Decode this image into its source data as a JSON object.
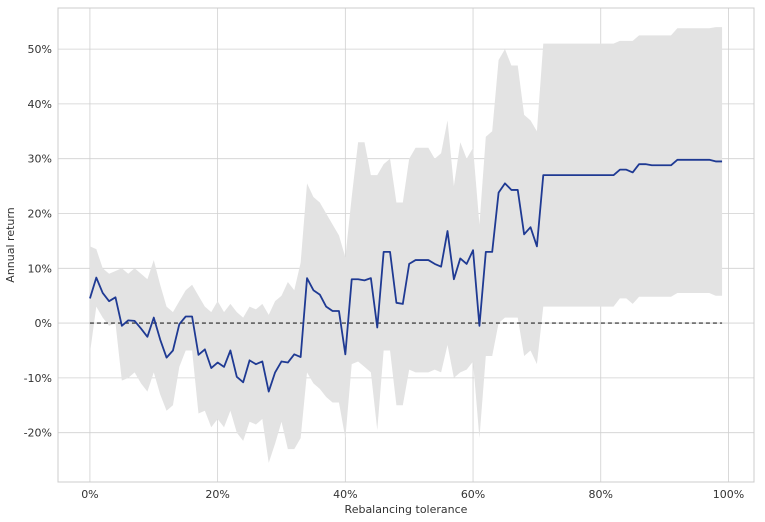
{
  "chart_data": {
    "type": "line",
    "title": "",
    "xlabel": "Rebalancing tolerance",
    "ylabel": "Annual return",
    "xlim": [
      -0.05,
      1.04
    ],
    "ylim": [
      -0.29,
      0.575
    ],
    "x_ticks": [
      0,
      0.2,
      0.4,
      0.6,
      0.8,
      1.0
    ],
    "x_tick_labels": [
      "0%",
      "20%",
      "40%",
      "60%",
      "80%",
      "100%"
    ],
    "y_ticks": [
      -0.2,
      -0.1,
      0,
      0.1,
      0.2,
      0.3,
      0.4,
      0.5
    ],
    "y_tick_labels": [
      "-20%",
      "-10%",
      "0%",
      "10%",
      "20%",
      "30%",
      "40%",
      "50%"
    ],
    "grid": true,
    "legend": "none",
    "colors": {
      "line": "#1f3a93",
      "band": "#e3e3e3",
      "zero": "#222222",
      "grid": "#d0d0d0",
      "frame": "#cccccc"
    },
    "x": [
      0,
      0.01,
      0.02,
      0.03,
      0.04,
      0.05,
      0.06,
      0.07,
      0.08,
      0.09,
      0.1,
      0.11,
      0.12,
      0.13,
      0.14,
      0.15,
      0.16,
      0.17,
      0.18,
      0.19,
      0.2,
      0.21,
      0.22,
      0.23,
      0.24,
      0.25,
      0.26,
      0.27,
      0.28,
      0.29,
      0.3,
      0.31,
      0.32,
      0.33,
      0.34,
      0.35,
      0.36,
      0.37,
      0.38,
      0.39,
      0.4,
      0.41,
      0.42,
      0.43,
      0.44,
      0.45,
      0.46,
      0.47,
      0.48,
      0.49,
      0.5,
      0.51,
      0.52,
      0.53,
      0.54,
      0.55,
      0.56,
      0.57,
      0.58,
      0.59,
      0.6,
      0.61,
      0.62,
      0.63,
      0.64,
      0.65,
      0.66,
      0.67,
      0.68,
      0.69,
      0.7,
      0.71,
      0.72,
      0.73,
      0.74,
      0.75,
      0.76,
      0.77,
      0.78,
      0.79,
      0.8,
      0.81,
      0.82,
      0.83,
      0.84,
      0.85,
      0.86,
      0.87,
      0.88,
      0.89,
      0.9,
      0.91,
      0.92,
      0.93,
      0.94,
      0.95,
      0.96,
      0.97,
      0.98,
      0.99
    ],
    "series": [
      {
        "mean": [
          0.045,
          0.083,
          0.055,
          0.04,
          0.047,
          -0.005,
          0.005,
          0.004,
          -0.01,
          -0.025,
          0.01,
          -0.03,
          -0.063,
          -0.05,
          -0.002,
          0.012,
          0.012,
          -0.058,
          -0.048,
          -0.082,
          -0.072,
          -0.08,
          -0.05,
          -0.098,
          -0.108,
          -0.068,
          -0.075,
          -0.07,
          -0.125,
          -0.09,
          -0.07,
          -0.072,
          -0.057,
          -0.062,
          0.082,
          0.06,
          0.052,
          0.03,
          0.022,
          0.022,
          -0.057,
          0.08,
          0.08,
          0.078,
          0.082,
          -0.008,
          0.13,
          0.13,
          0.037,
          0.035,
          0.108,
          0.115,
          0.115,
          0.115,
          0.108,
          0.103,
          0.168,
          0.08,
          0.118,
          0.108,
          0.133,
          -0.005,
          0.13,
          0.13,
          0.238,
          0.255,
          0.243,
          0.243,
          0.162,
          0.175,
          0.14,
          0.27,
          0.27,
          0.27,
          0.27,
          0.27,
          0.27,
          0.27,
          0.27,
          0.27,
          0.27,
          0.27,
          0.27,
          0.28,
          0.28,
          0.275,
          0.29,
          0.29,
          0.288,
          0.288,
          0.288,
          0.288,
          0.298,
          0.298,
          0.298,
          0.298,
          0.298,
          0.298,
          0.295,
          0.295
        ],
        "upper": [
          0.14,
          0.135,
          0.1,
          0.09,
          0.095,
          0.1,
          0.09,
          0.1,
          0.09,
          0.08,
          0.115,
          0.07,
          0.03,
          0.02,
          0.04,
          0.06,
          0.07,
          0.05,
          0.03,
          0.02,
          0.04,
          0.02,
          0.035,
          0.02,
          0.01,
          0.03,
          0.025,
          0.035,
          0.015,
          0.04,
          0.05,
          0.075,
          0.06,
          0.11,
          0.255,
          0.23,
          0.22,
          0.2,
          0.18,
          0.16,
          0.12,
          0.23,
          0.33,
          0.33,
          0.27,
          0.27,
          0.29,
          0.3,
          0.22,
          0.22,
          0.3,
          0.32,
          0.32,
          0.32,
          0.3,
          0.31,
          0.37,
          0.25,
          0.33,
          0.3,
          0.32,
          0.18,
          0.34,
          0.35,
          0.48,
          0.5,
          0.47,
          0.47,
          0.38,
          0.37,
          0.35,
          0.51,
          0.51,
          0.51,
          0.51,
          0.51,
          0.51,
          0.51,
          0.51,
          0.51,
          0.51,
          0.51,
          0.51,
          0.515,
          0.515,
          0.515,
          0.525,
          0.525,
          0.525,
          0.525,
          0.525,
          0.525,
          0.538,
          0.538,
          0.538,
          0.538,
          0.538,
          0.538,
          0.54,
          0.54
        ],
        "lower": [
          -0.055,
          0.03,
          0.01,
          -0.005,
          0.0,
          -0.105,
          -0.1,
          -0.09,
          -0.11,
          -0.125,
          -0.09,
          -0.13,
          -0.16,
          -0.15,
          -0.08,
          -0.05,
          -0.05,
          -0.165,
          -0.16,
          -0.19,
          -0.175,
          -0.19,
          -0.16,
          -0.2,
          -0.215,
          -0.18,
          -0.185,
          -0.175,
          -0.255,
          -0.22,
          -0.18,
          -0.23,
          -0.23,
          -0.21,
          -0.09,
          -0.11,
          -0.12,
          -0.135,
          -0.145,
          -0.145,
          -0.21,
          -0.075,
          -0.07,
          -0.08,
          -0.09,
          -0.195,
          -0.05,
          -0.05,
          -0.15,
          -0.15,
          -0.085,
          -0.09,
          -0.09,
          -0.09,
          -0.085,
          -0.09,
          -0.04,
          -0.1,
          -0.09,
          -0.085,
          -0.07,
          -0.21,
          -0.06,
          -0.06,
          0.0,
          0.01,
          0.01,
          0.01,
          -0.06,
          -0.05,
          -0.075,
          0.03,
          0.03,
          0.03,
          0.03,
          0.03,
          0.03,
          0.03,
          0.03,
          0.03,
          0.03,
          0.03,
          0.03,
          0.045,
          0.045,
          0.035,
          0.048,
          0.048,
          0.048,
          0.048,
          0.048,
          0.048,
          0.055,
          0.055,
          0.055,
          0.055,
          0.055,
          0.055,
          0.05,
          0.05
        ]
      }
    ],
    "reference_line": {
      "y": 0,
      "x_range": [
        0,
        0.99
      ],
      "style": "dashed"
    }
  }
}
